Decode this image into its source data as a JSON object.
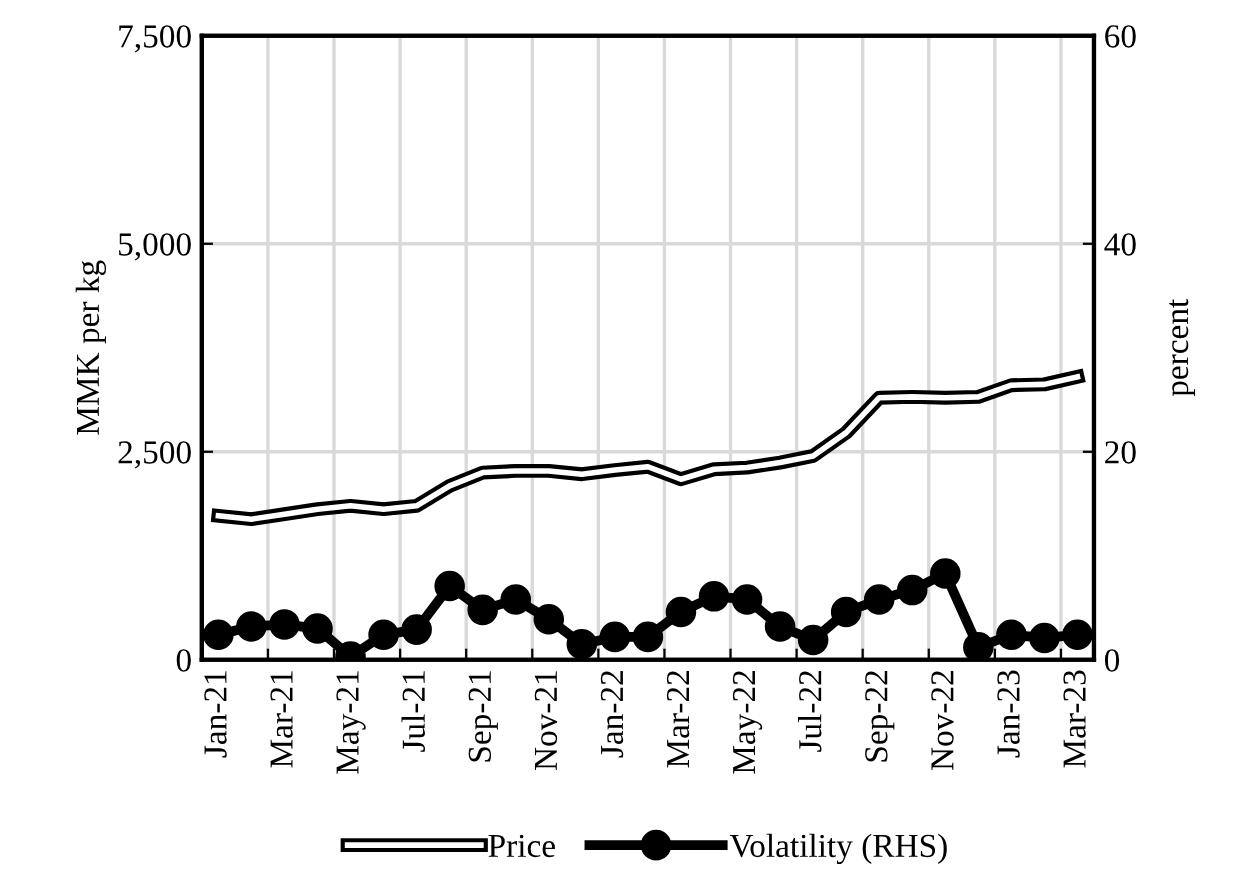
{
  "chart_data": {
    "type": "line",
    "categories": [
      "Jan-21",
      null,
      "Mar-21",
      null,
      "May-21",
      null,
      "Jul-21",
      null,
      "Sep-21",
      null,
      "Nov-21",
      null,
      "Jan-22",
      null,
      "Mar-22",
      null,
      "May-22",
      null,
      "Jul-22",
      null,
      "Sep-22",
      null,
      "Nov-22",
      null,
      "Jan-23",
      null,
      "Mar-23"
    ],
    "series": [
      {
        "name": "Price",
        "color": "#000000",
        "marker": "none",
        "values": [
          1730,
          1690,
          1750,
          1810,
          1850,
          1810,
          1850,
          2090,
          2250,
          2270,
          2270,
          2230,
          2280,
          2320,
          2170,
          2290,
          2310,
          2370,
          2450,
          2730,
          3150,
          3160,
          3150,
          3160,
          3300,
          3310,
          3400
        ]
      },
      {
        "name": "Volatility (RHS)",
        "color": "#000000",
        "marker": "circle",
        "axis": "y2",
        "values": [
          2.4,
          3.2,
          3.4,
          3.0,
          0.3,
          2.4,
          2.9,
          7.1,
          4.8,
          5.8,
          3.9,
          1.5,
          2.2,
          2.2,
          4.6,
          6.1,
          5.8,
          3.2,
          1.9,
          4.6,
          5.8,
          6.7,
          8.3,
          1.2,
          2.4,
          2.1,
          2.4
        ]
      }
    ],
    "ylabel": "MMK per kg",
    "y2label": "percent",
    "ylim": [
      0,
      7500
    ],
    "yticks": [
      0,
      {
        "value": 2500,
        "label": "2,500"
      },
      {
        "value": 5000,
        "label": "5,000"
      },
      {
        "value": 7500,
        "label": "7,500"
      }
    ],
    "y2lim": [
      0,
      60
    ],
    "y2ticks": [
      0,
      20,
      40,
      60
    ],
    "grid": true,
    "legend": "bottom",
    "line_style": "solid"
  }
}
